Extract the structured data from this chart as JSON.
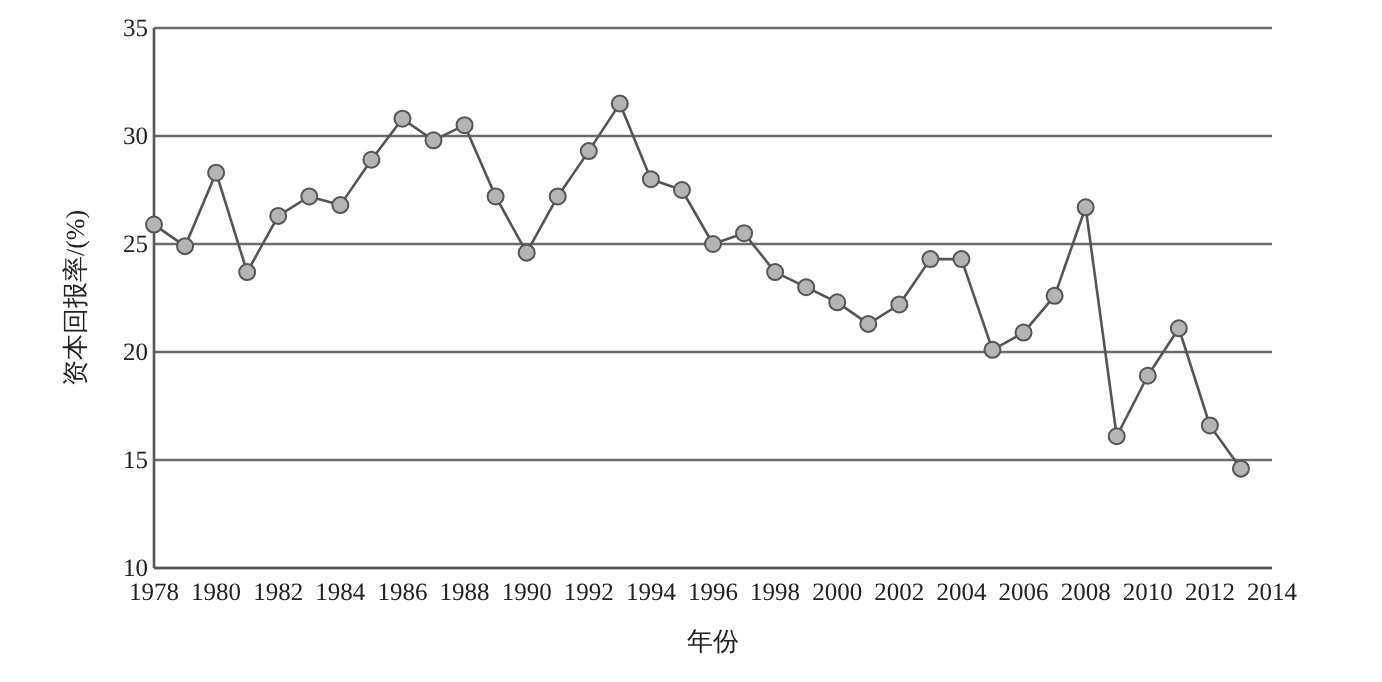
{
  "chart_data": {
    "type": "line",
    "xlabel": "年份",
    "ylabel": "资本回报率/(%)",
    "x": [
      1978,
      1979,
      1980,
      1981,
      1982,
      1983,
      1984,
      1985,
      1986,
      1987,
      1988,
      1989,
      1990,
      1991,
      1992,
      1993,
      1994,
      1995,
      1996,
      1997,
      1998,
      1999,
      2000,
      2001,
      2002,
      2003,
      2004,
      2005,
      2006,
      2007,
      2008,
      2009,
      2010,
      2011,
      2012,
      2013
    ],
    "series": [
      {
        "color": "#555555",
        "values": [
          25.9,
          24.9,
          28.3,
          23.7,
          26.3,
          27.2,
          26.8,
          28.9,
          30.8,
          29.8,
          30.5,
          27.2,
          24.6,
          27.2,
          29.3,
          31.5,
          28.0,
          27.5,
          25.0,
          25.5,
          23.7,
          23.0,
          22.3,
          21.3,
          22.2,
          24.3,
          24.3,
          20.1,
          20.9,
          22.6,
          26.7,
          16.1,
          18.9,
          21.1,
          16.6,
          14.6
        ]
      }
    ],
    "xlim": [
      1978,
      2014
    ],
    "ylim": [
      10,
      35
    ],
    "xticks": [
      1978,
      1980,
      1982,
      1984,
      1986,
      1988,
      1990,
      1992,
      1994,
      1996,
      1998,
      2000,
      2002,
      2004,
      2006,
      2008,
      2010,
      2012,
      2014
    ],
    "yticks": [
      10,
      15,
      20,
      25,
      30,
      35
    ],
    "grid": "y",
    "marker": "circle",
    "line_style": "solid"
  }
}
